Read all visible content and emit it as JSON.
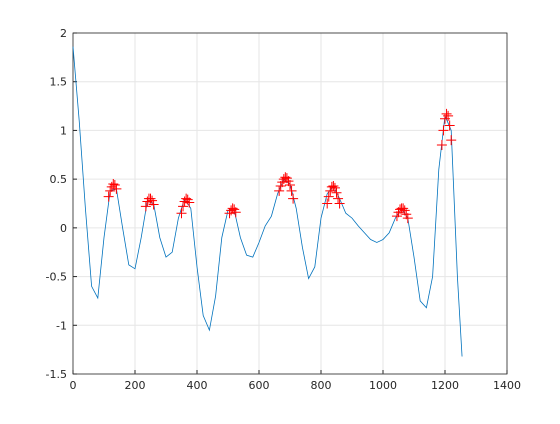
{
  "chart_data": {
    "type": "line",
    "xlim": [
      0,
      1400
    ],
    "ylim": [
      -1.5,
      2
    ],
    "xticks": [
      0,
      200,
      400,
      600,
      800,
      1000,
      1200,
      1400
    ],
    "yticks": [
      -1.5,
      -1,
      -0.5,
      0,
      0.5,
      1,
      1.5,
      2
    ],
    "grid": true,
    "series": [
      {
        "color": "#0072bd",
        "marker": "none",
        "x": [
          0,
          20,
          40,
          60,
          80,
          100,
          120,
          140,
          160,
          180,
          200,
          220,
          240,
          260,
          280,
          300,
          320,
          340,
          360,
          380,
          400,
          420,
          440,
          460,
          480,
          500,
          520,
          540,
          560,
          580,
          600,
          620,
          640,
          660,
          680,
          700,
          720,
          740,
          760,
          780,
          800,
          820,
          840,
          860,
          880,
          900,
          920,
          940,
          960,
          980,
          1000,
          1020,
          1040,
          1060,
          1080,
          1100,
          1120,
          1140,
          1160,
          1180,
          1200,
          1220,
          1240,
          1255
        ],
        "values": [
          1.86,
          1.1,
          0.2,
          -0.6,
          -0.72,
          -0.1,
          0.38,
          0.4,
          0.0,
          -0.38,
          -0.42,
          -0.1,
          0.28,
          0.25,
          -0.1,
          -0.3,
          -0.25,
          0.1,
          0.3,
          0.2,
          -0.4,
          -0.9,
          -1.05,
          -0.7,
          -0.1,
          0.18,
          0.18,
          -0.1,
          -0.28,
          -0.3,
          -0.15,
          0.02,
          0.12,
          0.35,
          0.5,
          0.45,
          0.2,
          -0.2,
          -0.52,
          -0.4,
          0.1,
          0.35,
          0.43,
          0.3,
          0.15,
          0.1,
          0.02,
          -0.05,
          -0.12,
          -0.15,
          -0.12,
          -0.05,
          0.1,
          0.2,
          0.1,
          -0.3,
          -0.75,
          -0.82,
          -0.5,
          0.6,
          1.15,
          1.0,
          -0.5,
          -1.32
        ]
      },
      {
        "color": "#ff0000",
        "marker": "+",
        "x": [
          115,
          120,
          125,
          130,
          135,
          140,
          235,
          240,
          245,
          250,
          255,
          260,
          350,
          355,
          360,
          365,
          370,
          375,
          505,
          510,
          515,
          520,
          525,
          665,
          670,
          675,
          680,
          685,
          690,
          695,
          700,
          705,
          710,
          820,
          825,
          830,
          835,
          840,
          845,
          850,
          855,
          860,
          1045,
          1050,
          1055,
          1060,
          1065,
          1070,
          1075,
          1080,
          1190,
          1195,
          1200,
          1205,
          1210,
          1215,
          1220
        ],
        "values": [
          0.32,
          0.38,
          0.42,
          0.45,
          0.44,
          0.4,
          0.22,
          0.27,
          0.3,
          0.3,
          0.28,
          0.24,
          0.15,
          0.22,
          0.27,
          0.3,
          0.29,
          0.26,
          0.15,
          0.18,
          0.2,
          0.19,
          0.16,
          0.38,
          0.43,
          0.47,
          0.5,
          0.52,
          0.51,
          0.48,
          0.44,
          0.38,
          0.3,
          0.25,
          0.32,
          0.38,
          0.42,
          0.43,
          0.41,
          0.36,
          0.3,
          0.25,
          0.12,
          0.16,
          0.19,
          0.2,
          0.2,
          0.18,
          0.14,
          0.1,
          0.85,
          1.0,
          1.12,
          1.17,
          1.15,
          1.05,
          0.9
        ]
      }
    ]
  }
}
